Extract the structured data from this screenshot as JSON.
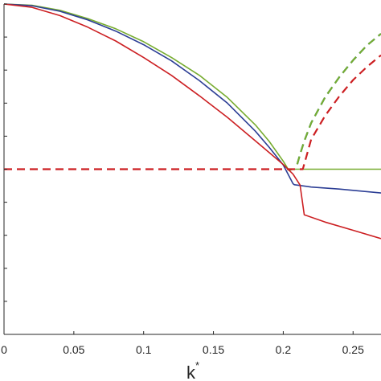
{
  "chart_data": {
    "type": "line",
    "title": "",
    "xlabel": "k",
    "xlabel_superscript": "*",
    "ylabel": "",
    "xlim": [
      0,
      0.27
    ],
    "ylim": [
      -5,
      5
    ],
    "x_ticks": [
      0,
      0.05,
      0.1,
      0.15,
      0.2,
      0.25
    ],
    "x_tick_labels": [
      "0",
      "0.05",
      "0.1",
      "0.15",
      "0.2",
      "0.25"
    ],
    "y_ticks": [
      -5,
      -4,
      -3,
      -2,
      -1,
      0,
      1,
      2,
      3,
      4,
      5
    ],
    "y_tick_labels": [],
    "grid": false,
    "legend": "none",
    "series": [
      {
        "color": "#77ac30",
        "style": "solid",
        "x": [
          0,
          0.02,
          0.04,
          0.06,
          0.08,
          0.1,
          0.12,
          0.14,
          0.16,
          0.18,
          0.19,
          0.2,
          0.204,
          0.207,
          0.21,
          0.24,
          0.27
        ],
        "y": [
          5,
          4.96,
          4.81,
          4.56,
          4.25,
          3.86,
          3.38,
          2.84,
          2.17,
          1.34,
          0.84,
          0.24,
          -0.04,
          0,
          0,
          0,
          0
        ]
      },
      {
        "color": "#0072bd",
        "style": "dashed",
        "x": [
          0.21,
          0.212,
          0.215,
          0.22,
          0.23,
          0.24,
          0.25,
          0.26,
          0.27
        ],
        "y": [
          0.15,
          0.45,
          0.85,
          1.4,
          2.18,
          2.78,
          3.3,
          3.75,
          4.1
        ]
      },
      {
        "color": "#77ac30",
        "style": "dashed",
        "x": [
          0.21,
          0.212,
          0.215,
          0.22,
          0.23,
          0.24,
          0.25,
          0.26,
          0.27
        ],
        "y": [
          0.15,
          0.45,
          0.85,
          1.4,
          2.18,
          2.78,
          3.3,
          3.75,
          4.1
        ]
      },
      {
        "color": "#2c3e95",
        "style": "solid",
        "x": [
          0,
          0.02,
          0.04,
          0.06,
          0.08,
          0.1,
          0.12,
          0.14,
          0.16,
          0.18,
          0.19,
          0.2,
          0.207,
          0.208,
          0.22,
          0.24,
          0.26,
          0.27
        ],
        "y": [
          5,
          4.95,
          4.78,
          4.52,
          4.18,
          3.77,
          3.28,
          2.68,
          2.0,
          1.15,
          0.66,
          0.13,
          -0.44,
          -0.47,
          -0.54,
          -0.6,
          -0.68,
          -0.72
        ]
      },
      {
        "color": "#cc1f22",
        "style": "solid",
        "x": [
          0,
          0.02,
          0.04,
          0.06,
          0.08,
          0.1,
          0.12,
          0.14,
          0.16,
          0.18,
          0.19,
          0.2,
          0.207,
          0.212,
          0.215,
          0.23,
          0.25,
          0.27
        ],
        "y": [
          5,
          4.9,
          4.65,
          4.3,
          3.88,
          3.38,
          2.84,
          2.22,
          1.57,
          0.86,
          0.5,
          0.14,
          -0.15,
          -0.48,
          -1.38,
          -1.6,
          -1.85,
          -2.1
        ]
      },
      {
        "color": "#cc1f22",
        "style": "dashed",
        "x": [
          0,
          0.05,
          0.1,
          0.15,
          0.2,
          0.207,
          0.214,
          0.216,
          0.22,
          0.23,
          0.24,
          0.25,
          0.26,
          0.27
        ],
        "y": [
          0,
          0,
          0,
          0,
          0,
          0,
          0,
          0.3,
          0.9,
          1.62,
          2.2,
          2.7,
          3.1,
          3.45
        ]
      }
    ]
  }
}
